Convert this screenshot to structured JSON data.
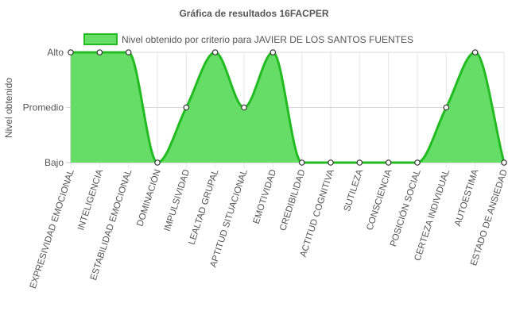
{
  "chart_data": {
    "type": "area",
    "title": "Gráfica de resultados 16FACPER",
    "ylabel": "Nivel obtenido",
    "xlabel": "",
    "y_levels": [
      "Bajo",
      "Promedio",
      "Alto"
    ],
    "ylim": [
      0,
      2
    ],
    "categories": [
      "EXPRESIVIDAD EMOCIONAL",
      "INTELIGENCIA",
      "ESTABILIDAD EMOCIONAL",
      "DOMINACIÓN",
      "IMPULSIVIDAD",
      "LEALTAD GRUPAL",
      "APTITUD SITUACIONAL",
      "EMOTIVIDAD",
      "CREDIBILIDAD",
      "ACTITUD COGNITIVA",
      "SUTILEZA",
      "CONSCIENCIA",
      "POSICIÓN SOCIAL",
      "CERTEZA INDIVIDUAL",
      "AUTOESTIMA",
      "ESTADO DE ANSIEDAD"
    ],
    "series": [
      {
        "name": "Nivel obtenido por criterio para JAVIER DE LOS SANTOS FUENTES",
        "values": [
          2,
          2,
          2,
          0,
          1,
          2,
          1,
          2,
          0,
          0,
          0,
          0,
          0,
          1,
          2,
          0
        ]
      }
    ],
    "grid": true,
    "legend_position": "top",
    "colors": {
      "fill": "#66dd66",
      "line": "#22bb22",
      "point_fill": "#ffffff",
      "point_stroke": "#333333",
      "grid": "#e6e6e6",
      "axis": "#bbbbbb",
      "text": "#555555"
    }
  }
}
